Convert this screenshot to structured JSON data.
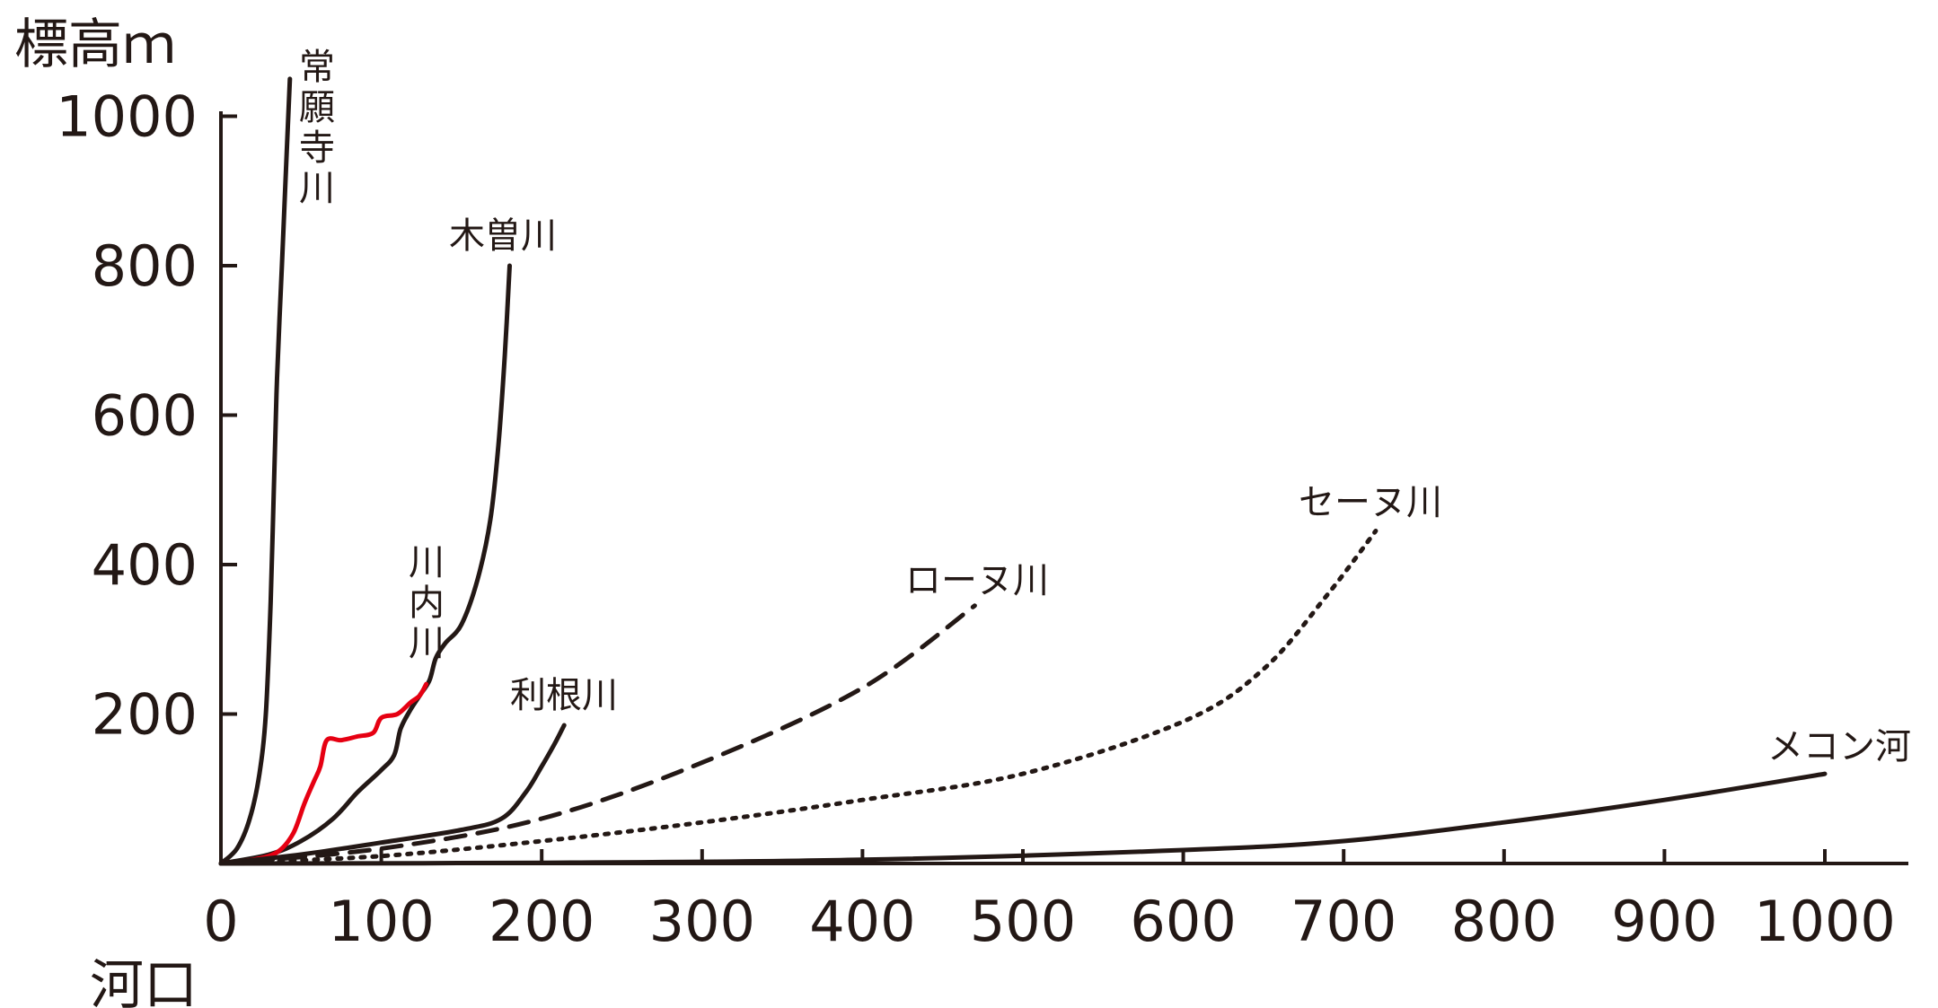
{
  "chart_data": {
    "type": "line",
    "title": "",
    "ylabel": "標高ｍ",
    "xlabel": "河口",
    "xlim": [
      0,
      1050
    ],
    "ylim": [
      0,
      1000
    ],
    "x_ticks": [
      "0",
      "100",
      "200",
      "300",
      "400",
      "500",
      "600",
      "700",
      "800",
      "900",
      "1000"
    ],
    "y_ticks": [
      "200",
      "400",
      "600",
      "800",
      "1000"
    ],
    "x_tick_values": [
      0,
      100,
      200,
      300,
      400,
      500,
      600,
      700,
      800,
      900,
      1000
    ],
    "y_tick_values": [
      200,
      400,
      600,
      800,
      1000
    ],
    "colors": {
      "axis": "#231815",
      "default_series": "#231815",
      "highlight_series": "#e60012"
    },
    "series": [
      {
        "name": "常願寺川",
        "style": "solid",
        "color": "#231815",
        "label_orientation": "vertical",
        "points": [
          [
            0,
            0
          ],
          [
            10,
            20
          ],
          [
            18,
            60
          ],
          [
            24,
            120
          ],
          [
            28,
            200
          ],
          [
            31,
            350
          ],
          [
            33,
            500
          ],
          [
            35,
            650
          ],
          [
            38,
            800
          ],
          [
            41,
            950
          ],
          [
            43,
            1050
          ]
        ]
      },
      {
        "name": "木曽川",
        "style": "solid",
        "color": "#231815",
        "label_orientation": "horizontal",
        "points": [
          [
            0,
            0
          ],
          [
            30,
            12
          ],
          [
            50,
            30
          ],
          [
            70,
            60
          ],
          [
            85,
            95
          ],
          [
            100,
            125
          ],
          [
            108,
            145
          ],
          [
            112,
            180
          ],
          [
            118,
            205
          ],
          [
            124,
            225
          ],
          [
            130,
            245
          ],
          [
            134,
            275
          ],
          [
            140,
            295
          ],
          [
            150,
            320
          ],
          [
            160,
            380
          ],
          [
            168,
            460
          ],
          [
            173,
            560
          ],
          [
            177,
            680
          ],
          [
            180,
            800
          ]
        ]
      },
      {
        "name": "川内川",
        "style": "solid",
        "color": "#e60012",
        "label_orientation": "vertical",
        "points": [
          [
            0,
            0
          ],
          [
            20,
            5
          ],
          [
            35,
            15
          ],
          [
            45,
            40
          ],
          [
            52,
            80
          ],
          [
            58,
            110
          ],
          [
            62,
            130
          ],
          [
            66,
            165
          ],
          [
            75,
            165
          ],
          [
            85,
            170
          ],
          [
            95,
            175
          ],
          [
            100,
            195
          ],
          [
            110,
            200
          ],
          [
            118,
            215
          ],
          [
            124,
            225
          ],
          [
            128,
            240
          ]
        ]
      },
      {
        "name": "利根川",
        "style": "solid",
        "color": "#231815",
        "label_orientation": "horizontal",
        "points": [
          [
            0,
            0
          ],
          [
            50,
            12
          ],
          [
            100,
            28
          ],
          [
            150,
            45
          ],
          [
            175,
            60
          ],
          [
            190,
            95
          ],
          [
            200,
            130
          ],
          [
            208,
            160
          ],
          [
            214,
            185
          ]
        ]
      },
      {
        "name": "ローヌ川",
        "style": "dashed",
        "color": "#231815",
        "label_orientation": "horizontal",
        "points": [
          [
            0,
            0
          ],
          [
            100,
            20
          ],
          [
            200,
            60
          ],
          [
            300,
            135
          ],
          [
            400,
            235
          ],
          [
            470,
            345
          ]
        ]
      },
      {
        "name": "セーヌ川",
        "style": "dotted",
        "color": "#231815",
        "label_orientation": "horizontal",
        "points": [
          [
            0,
            0
          ],
          [
            100,
            10
          ],
          [
            200,
            30
          ],
          [
            300,
            55
          ],
          [
            400,
            85
          ],
          [
            500,
            120
          ],
          [
            600,
            190
          ],
          [
            650,
            260
          ],
          [
            690,
            360
          ],
          [
            720,
            445
          ]
        ]
      },
      {
        "name": "メコン河",
        "style": "solid",
        "color": "#231815",
        "label_orientation": "horizontal",
        "points": [
          [
            0,
            0
          ],
          [
            200,
            1
          ],
          [
            400,
            5
          ],
          [
            600,
            18
          ],
          [
            700,
            30
          ],
          [
            800,
            55
          ],
          [
            900,
            85
          ],
          [
            1000,
            120
          ]
        ]
      }
    ]
  }
}
